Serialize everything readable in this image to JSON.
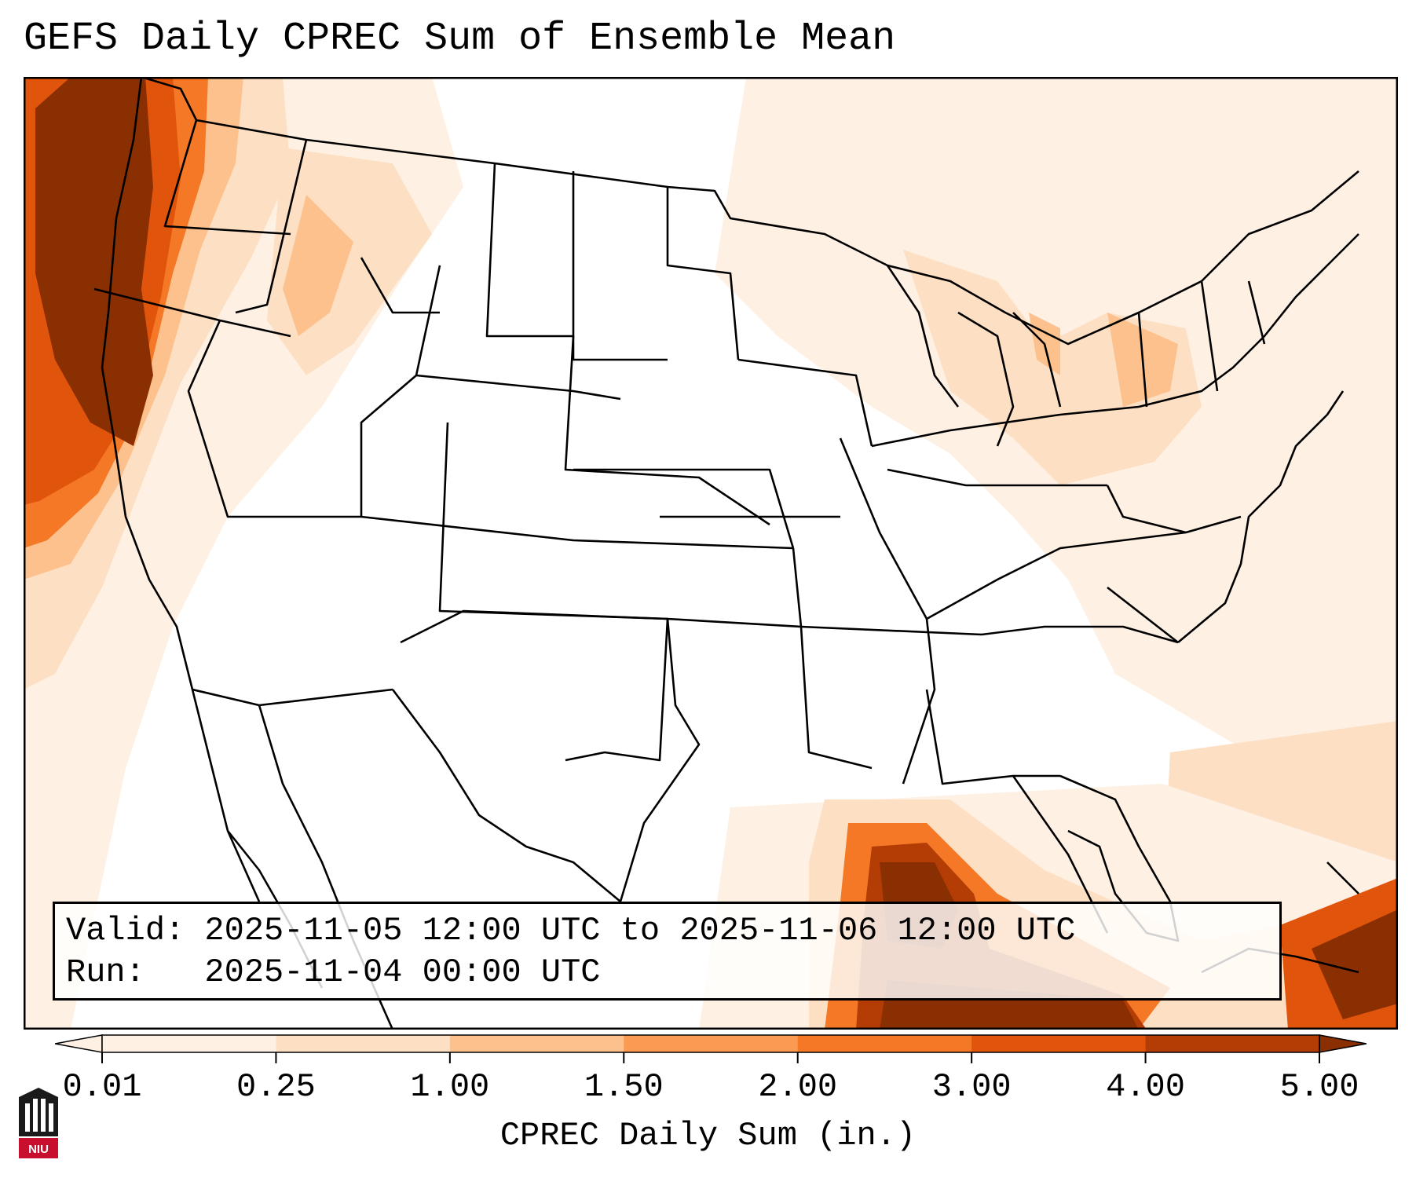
{
  "title": "GEFS Daily CPREC Sum of Ensemble Mean",
  "info": {
    "valid_line": "Valid: 2025-11-05 12:00 UTC to 2025-11-06 12:00 UTC",
    "run_line": "Run:   2025-11-04 00:00 UTC"
  },
  "colorbar": {
    "label": "CPREC Daily Sum (in.)",
    "ticks": [
      "0.01",
      "0.25",
      "1.00",
      "1.50",
      "2.00",
      "3.00",
      "4.00",
      "5.00"
    ],
    "colors": [
      "#fef1e4",
      "#fde0c4",
      "#fdc18e",
      "#fb9a53",
      "#f57826",
      "#e1540c",
      "#b33d04",
      "#8a2f02"
    ],
    "extend": "both"
  },
  "map": {
    "region": "Continental United States",
    "precip_colors": {
      "very_light": "#fef1e4",
      "light": "#fde0c4",
      "moderate": "#fdc18e",
      "medium": "#fb9a53",
      "orange": "#f57826",
      "dark_orange": "#e1540c",
      "heavy": "#b33d04",
      "extreme": "#8a2f02"
    }
  },
  "logo": {
    "text": "NIU",
    "colors": {
      "red": "#c8102e",
      "black": "#1a1a1a"
    }
  }
}
